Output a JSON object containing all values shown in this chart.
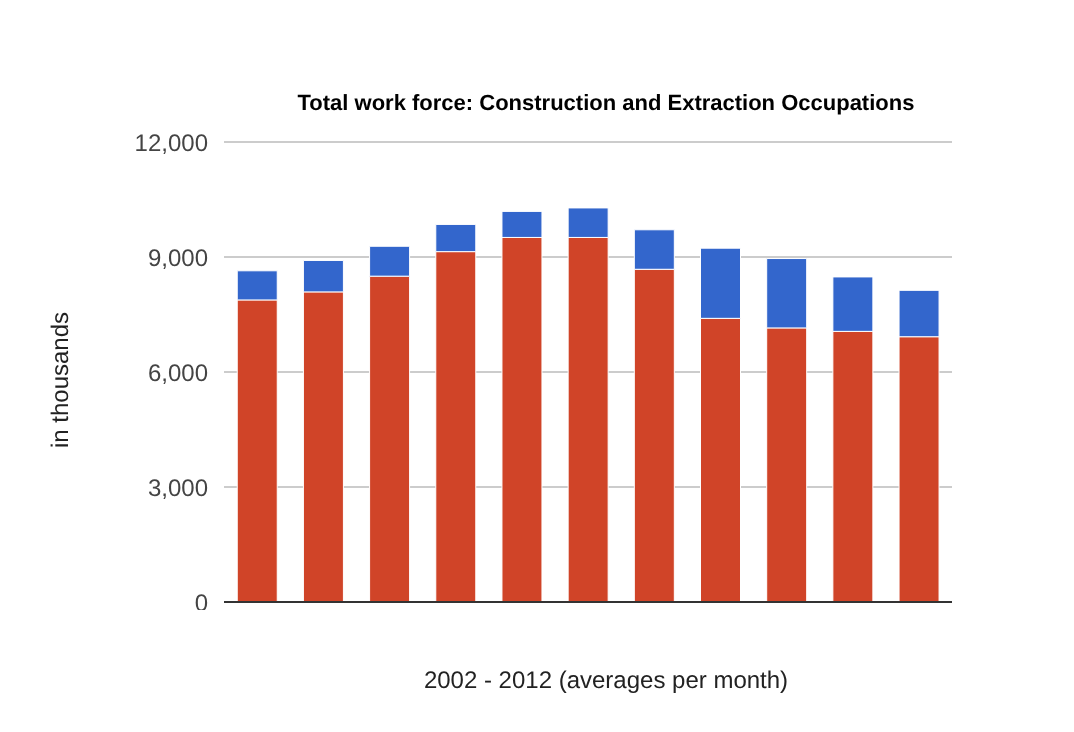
{
  "chart_data": {
    "type": "bar",
    "title": "Total work force: Construction and Extraction Occupations",
    "xlabel": "2002 - 2012 (averages per month)",
    "ylabel": "in thousands",
    "categories": [
      null,
      null,
      null,
      null,
      null,
      null,
      null,
      null,
      null,
      null,
      null
    ],
    "stacked": true,
    "series": [
      {
        "color": "#d04428",
        "values": [
          7880,
          8090,
          8500,
          9140,
          9510,
          9510,
          8680,
          7400,
          7150,
          7060,
          6920
        ]
      },
      {
        "color": "#3366cc",
        "values": [
          760,
          820,
          780,
          710,
          680,
          770,
          1030,
          1830,
          1810,
          1420,
          1210
        ]
      }
    ],
    "ylim": [
      0,
      12000
    ],
    "yticks": [
      0,
      {
        "value": 3000,
        "label": "3,000"
      },
      {
        "value": 6000,
        "label": "6,000"
      },
      {
        "value": 9000,
        "label": "9,000"
      },
      {
        "value": 12000,
        "label": "12,000"
      }
    ],
    "grid": "y",
    "legend": false
  }
}
